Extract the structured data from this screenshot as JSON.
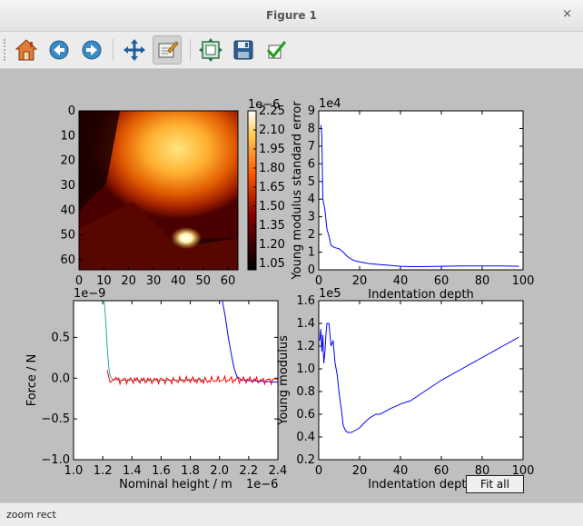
{
  "window": {
    "title": "Figure 1",
    "close_glyph": "×"
  },
  "toolbar": {
    "tools": [
      {
        "name": "home-icon",
        "tooltip": "Reset original view"
      },
      {
        "name": "back-icon",
        "tooltip": "Back to previous view"
      },
      {
        "name": "forward-icon",
        "tooltip": "Forward to next view"
      },
      {
        "name": "pan-icon",
        "tooltip": "Pan axes"
      },
      {
        "name": "zoom-icon",
        "tooltip": "Zoom to rectangle",
        "active": true
      },
      {
        "name": "subplots-icon",
        "tooltip": "Configure subplots"
      },
      {
        "name": "save-icon",
        "tooltip": "Save the figure"
      },
      {
        "name": "edit-check-icon",
        "tooltip": "Edit parameters"
      }
    ]
  },
  "status": {
    "text": "zoom rect"
  },
  "fit_button": {
    "label": "Fit all"
  },
  "colors": {
    "line_blue": "#0000ff",
    "line_red": "#ff0000",
    "line_cyan": "#2ca6a4",
    "background": "#bfbfbf"
  },
  "chart_data": [
    {
      "type": "heatmap",
      "colormap": "afmhot",
      "xticks": [
        "0",
        "10",
        "20",
        "30",
        "40",
        "50",
        "60"
      ],
      "yticks": [
        "0",
        "10",
        "20",
        "30",
        "40",
        "50",
        "60"
      ],
      "xlim": [
        0,
        64
      ],
      "ylim": [
        64,
        0
      ],
      "colorbar": {
        "ticks": [
          "2.25",
          "2.10",
          "1.95",
          "1.80",
          "1.65",
          "1.50",
          "1.35",
          "1.20",
          "1.05"
        ],
        "range": [
          1.0,
          2.25
        ],
        "exponent": "1e−6"
      }
    },
    {
      "type": "line",
      "xlabel": "Indentation depth",
      "ylabel": "Young modulus standard error",
      "xlim": [
        0,
        100
      ],
      "ylim": [
        0,
        9
      ],
      "y_exponent": "1e4",
      "xticks": [
        "0",
        "20",
        "40",
        "60",
        "80",
        "100"
      ],
      "yticks": [
        "0",
        "1",
        "2",
        "3",
        "4",
        "5",
        "6",
        "7",
        "8",
        "9"
      ],
      "series": [
        {
          "x": [
            1,
            1.5,
            2,
            3,
            4,
            5,
            6,
            7,
            8,
            10,
            12,
            14,
            16,
            18,
            20,
            25,
            30,
            35,
            40,
            45,
            50,
            60,
            70,
            80,
            90,
            98
          ],
          "y": [
            8.2,
            7.6,
            4.0,
            3.4,
            2.3,
            1.9,
            1.4,
            1.3,
            1.25,
            1.2,
            1.0,
            0.75,
            0.6,
            0.5,
            0.45,
            0.35,
            0.3,
            0.25,
            0.2,
            0.18,
            0.18,
            0.2,
            0.22,
            0.22,
            0.22,
            0.2
          ]
        }
      ]
    },
    {
      "type": "line",
      "xlabel": "Nominal height / m",
      "ylabel": "Force / N",
      "xlim": [
        1.0,
        2.4
      ],
      "ylim": [
        -1.0,
        0.95
      ],
      "x_exponent": "1e−6",
      "y_exponent": "1e−9",
      "xticks": [
        "1.0",
        "1.2",
        "1.4",
        "1.6",
        "1.8",
        "2.0",
        "2.2",
        "2.4"
      ],
      "yticks": [
        "−1.0",
        "−0.5",
        "0.0",
        "0.5"
      ],
      "series": [
        {
          "x": [
            1.21,
            1.22,
            1.23,
            1.24,
            1.25,
            1.27,
            1.3,
            1.4,
            1.6,
            1.8,
            1.9
          ],
          "y": [
            0.95,
            0.7,
            0.4,
            0.15,
            0.03,
            -0.02,
            -0.02,
            -0.03,
            -0.03,
            -0.02,
            -0.02
          ]
        },
        {
          "x": [
            2.02,
            2.04,
            2.06,
            2.08,
            2.1,
            2.12,
            2.15,
            2.2,
            2.3,
            2.4
          ],
          "y": [
            0.95,
            0.75,
            0.5,
            0.3,
            0.12,
            0.02,
            -0.02,
            -0.03,
            -0.04,
            -0.05
          ]
        },
        {
          "x": [
            1.23,
            1.24,
            1.25,
            1.3,
            1.4,
            1.5,
            1.6,
            1.7,
            1.8,
            1.9,
            2.0,
            2.1,
            2.2,
            2.3,
            2.4
          ],
          "y": [
            0.1,
            0.02,
            -0.02,
            -0.03,
            -0.02,
            -0.03,
            -0.02,
            -0.03,
            -0.02,
            -0.03,
            -0.02,
            -0.02,
            -0.02,
            -0.03,
            -0.02
          ]
        }
      ]
    },
    {
      "type": "line",
      "xlabel": "Indentation depth",
      "ylabel": "Young modulus",
      "xlim": [
        0,
        100
      ],
      "ylim": [
        0.2,
        1.6
      ],
      "y_exponent": "1e5",
      "xticks": [
        "0",
        "20",
        "40",
        "60",
        "80",
        "100"
      ],
      "yticks": [
        "0.2",
        "0.4",
        "0.6",
        "0.8",
        "1.0",
        "1.2",
        "1.4",
        "1.6"
      ],
      "series": [
        {
          "x": [
            0.5,
            1,
            1.5,
            2,
            2.5,
            3,
            3.5,
            4,
            5,
            6,
            7,
            8,
            9,
            10,
            11,
            12,
            13,
            14,
            15,
            16,
            18,
            20,
            22,
            25,
            28,
            30,
            35,
            40,
            45,
            50,
            55,
            60,
            65,
            70,
            75,
            80,
            85,
            90,
            95,
            98
          ],
          "y": [
            1.25,
            1.35,
            1.15,
            1.3,
            1.05,
            1.15,
            1.3,
            1.4,
            1.4,
            1.2,
            1.25,
            1.05,
            0.95,
            0.78,
            0.65,
            0.5,
            0.46,
            0.44,
            0.44,
            0.44,
            0.46,
            0.48,
            0.52,
            0.57,
            0.6,
            0.6,
            0.65,
            0.69,
            0.72,
            0.78,
            0.84,
            0.9,
            0.95,
            1.0,
            1.05,
            1.1,
            1.15,
            1.2,
            1.25,
            1.28
          ]
        }
      ]
    }
  ]
}
